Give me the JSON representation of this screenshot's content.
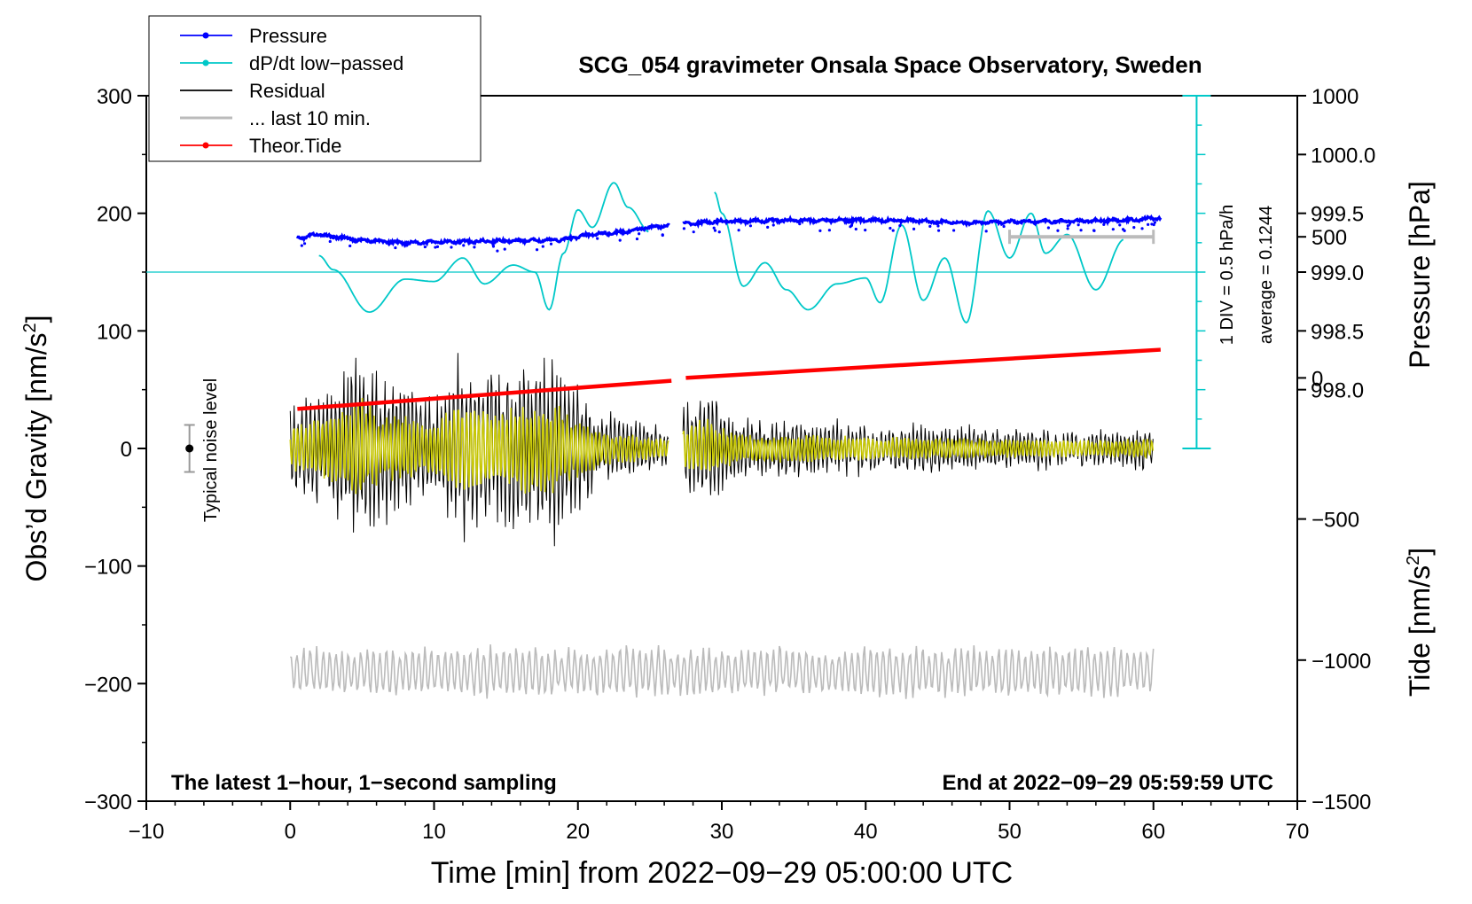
{
  "chart_data": {
    "type": "line",
    "title": "SCG_054 gravimeter Onsala Space Observatory, Sweden",
    "xlabel": "Time [min] from 2022−09−29 05:00:00 UTC",
    "ylabel_left_main": "Obs’d Gravity [nm/s",
    "ylabel_left_sup": "2",
    "ylabel_left_close": "]",
    "ylabel_right_pressure": "Pressure [hPa]",
    "ylabel_right_tide_main": "Tide [nm/s",
    "ylabel_right_tide_sup": "2",
    "ylabel_right_tide_close": "]",
    "xlim": [
      -10,
      70
    ],
    "ylim_left": [
      -300,
      300
    ],
    "ylim_tide": [
      -1500,
      1000
    ],
    "x_ticks": [
      "−10",
      "0",
      "10",
      "20",
      "30",
      "40",
      "50",
      "60",
      "70"
    ],
    "x_tick_values": [
      -10,
      0,
      10,
      20,
      30,
      40,
      50,
      60,
      70
    ],
    "y_left_ticks": [
      "300",
      "200",
      "100",
      "0",
      "−100",
      "−200",
      "−300"
    ],
    "y_left_tick_values": [
      300,
      200,
      100,
      0,
      -100,
      -200,
      -300
    ],
    "pressure_ticks": [
      "1000.0",
      "999.5",
      "999.0",
      "998.5",
      "998.0"
    ],
    "pressure_tick_values": [
      1000.0,
      999.5,
      999.0,
      998.5,
      998.0
    ],
    "tide_ticks": [
      "1000",
      "500",
      "0",
      "−500",
      "−1000",
      "−1500"
    ],
    "tide_tick_values": [
      1000,
      500,
      0,
      -500,
      -1000,
      -1500
    ],
    "legend": [
      {
        "label": "Pressure",
        "color": "#0000ff",
        "marker": true
      },
      {
        "label": "dP/dt low−passed",
        "color": "#00c8c8",
        "marker": true
      },
      {
        "label": "Residual",
        "color": "#000000",
        "marker": false
      },
      {
        "label": "... last 10 min.",
        "color": "#bbbbbb",
        "marker": false
      },
      {
        "label": "Theor.Tide",
        "color": "#ff0000",
        "marker": true
      }
    ],
    "legend_position": "top-left",
    "annotations": {
      "bottom_left": "The latest 1−hour, 1−second sampling",
      "bottom_right": "End at 2022−09−29 05:59:59 UTC",
      "div_scale": "1 DIV = 0.5 hPa/h",
      "average": "average = 0.1244",
      "noise": "Typical noise level"
    },
    "noise_level": {
      "x": -7,
      "center": 0,
      "half_range": 20
    },
    "pressure_series": {
      "t": [
        0.5,
        2,
        3,
        5,
        8,
        12,
        18,
        22,
        26,
        27.3,
        30,
        35,
        42,
        47,
        52,
        58,
        60.5
      ],
      "p": [
        999.29,
        999.32,
        999.3,
        999.27,
        999.25,
        999.26,
        999.27,
        999.33,
        999.39,
        999.41,
        999.43,
        999.44,
        999.44,
        999.42,
        999.43,
        999.44,
        999.46
      ]
    },
    "dpdt_series": {
      "t": [
        2,
        3,
        5.5,
        8,
        10,
        12,
        13.5,
        15.5,
        17,
        18,
        19,
        20,
        21,
        22.5,
        23.5,
        25,
        29.5,
        30,
        31.5,
        33,
        34.5,
        36,
        38,
        40,
        41,
        42.5,
        44,
        45.5,
        47,
        48.5,
        50,
        51.5,
        52.5,
        54,
        56,
        58
      ],
      "v": [
        164,
        152,
        116,
        144,
        142,
        162,
        140,
        156,
        150,
        118,
        166,
        203,
        188,
        226,
        205,
        184,
        218,
        200,
        138,
        158,
        135,
        118,
        140,
        145,
        124,
        190,
        126,
        162,
        107,
        202,
        162,
        200,
        166,
        182,
        135,
        178
      ]
    },
    "dpdt_reference_level": 150,
    "div_scale_values": {
      "base": 0,
      "top": 300
    },
    "residual_envelope": {
      "t": [
        0,
        2,
        4,
        5,
        6,
        8,
        10,
        12,
        14,
        16,
        18,
        20,
        22,
        26.3,
        27.3,
        29,
        31,
        33,
        35,
        37,
        40,
        45,
        50,
        55,
        60
      ],
      "amp": [
        40,
        55,
        75,
        95,
        70,
        60,
        50,
        92,
        70,
        80,
        90,
        55,
        30,
        20,
        40,
        55,
        30,
        25,
        28,
        25,
        22,
        20,
        18,
        16,
        18
      ]
    },
    "residual_gap": [
      26.3,
      27.3
    ],
    "last10_min_bar": {
      "x_start": 50,
      "x_end": 60,
      "tide": 500
    },
    "tide_series": {
      "t": [
        0.5,
        26.5,
        27.5,
        60.5
      ],
      "v": [
        -110,
        -10,
        0,
        100
      ]
    },
    "last10_series": {
      "t_start": 0,
      "t_end": 60,
      "center": -190,
      "amp": 22
    }
  }
}
